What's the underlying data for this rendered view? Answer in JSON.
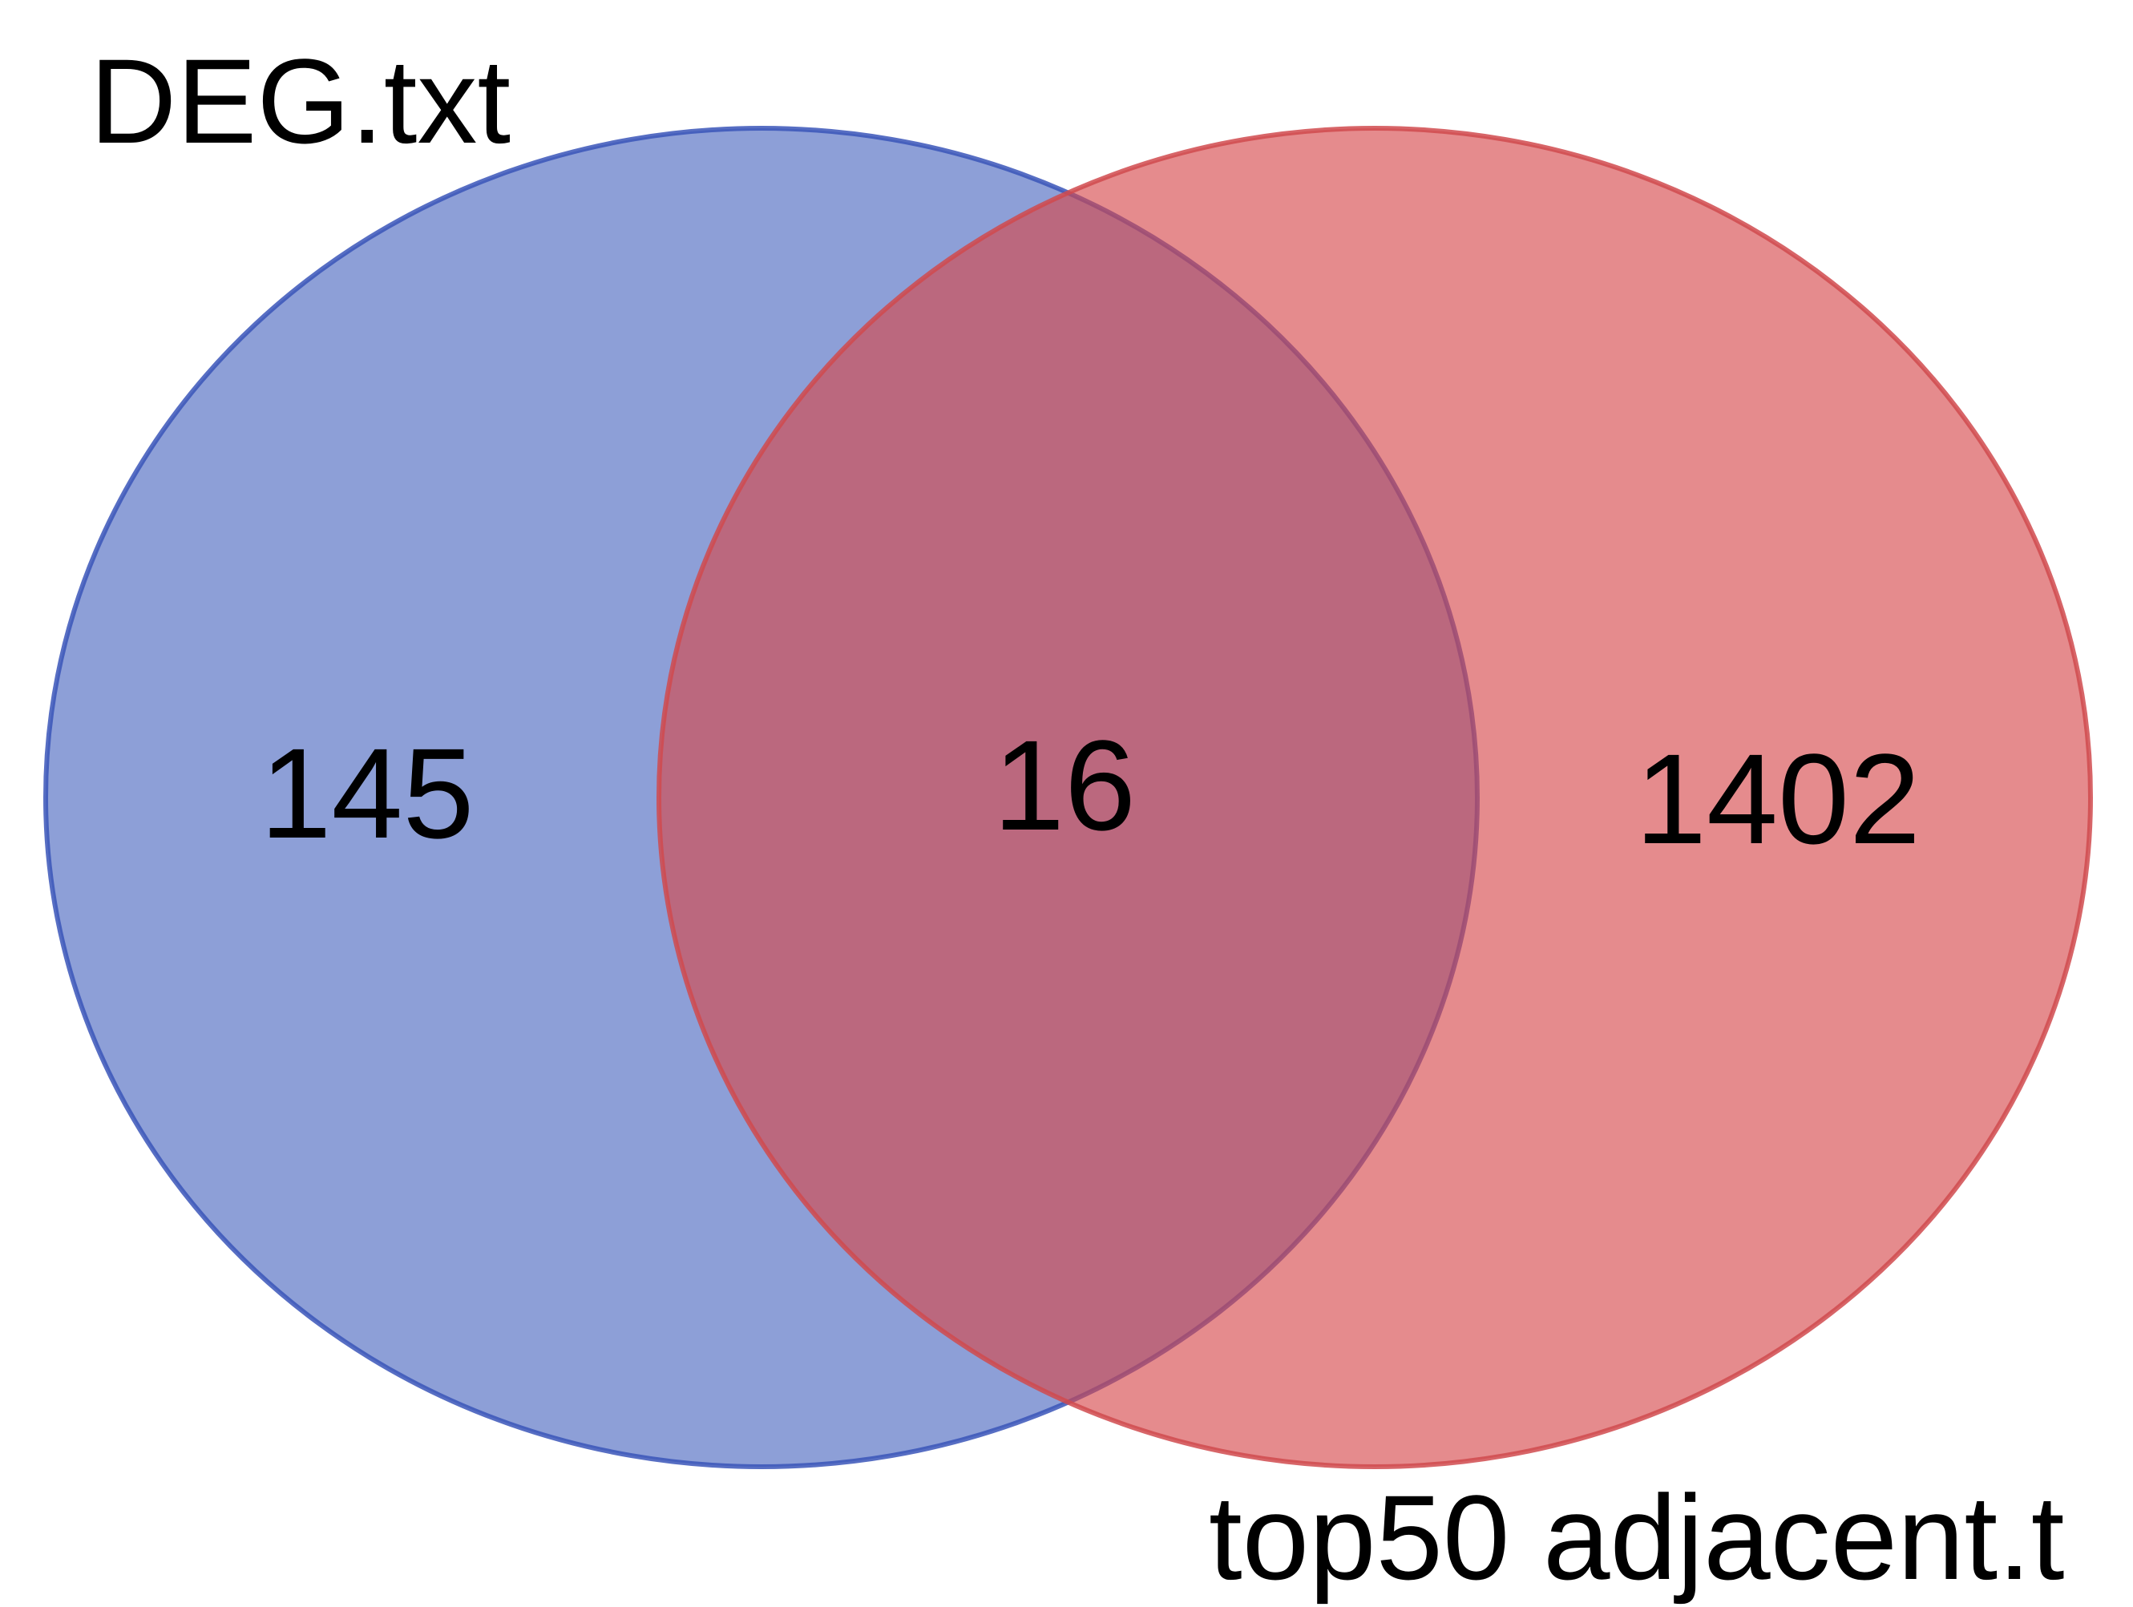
{
  "diagram": {
    "type": "venn",
    "sets": [
      {
        "label": "DEG.txt",
        "fill_color": "#4a67bf",
        "stroke_color": "#3a55b8",
        "only_count": "145"
      },
      {
        "label": "top50 adjacent.t",
        "fill_color": "#d6474b",
        "stroke_color": "#d04a4e",
        "only_count": "1402"
      }
    ],
    "intersection_count": "16",
    "intersection_color": "#a95c78"
  }
}
